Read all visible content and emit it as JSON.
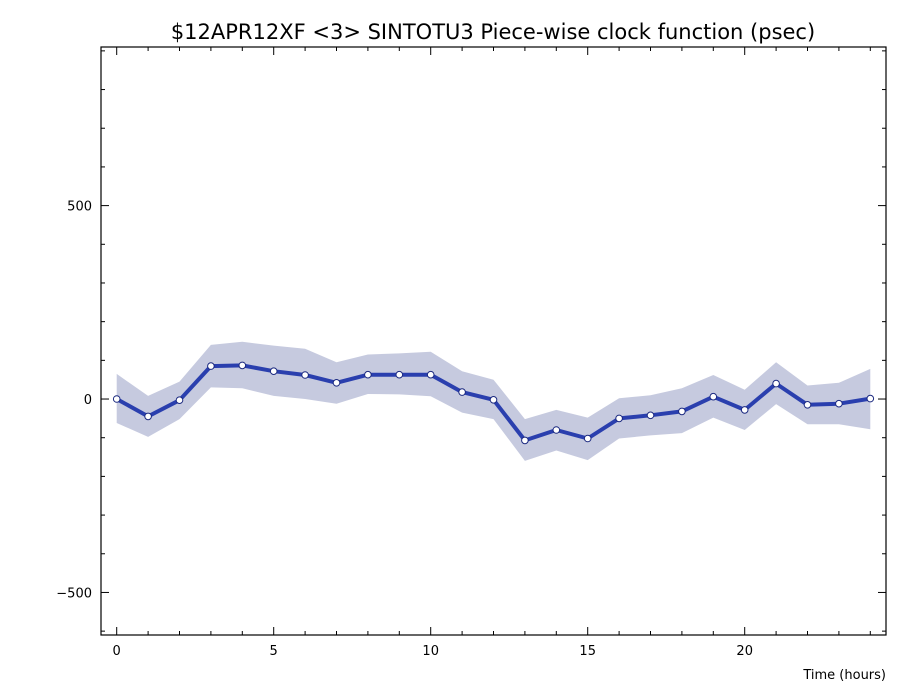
{
  "chart_data": {
    "type": "line",
    "title": "$12APR12XF <3>  SINTOTU3  Piece-wise clock function (psec)",
    "xlabel": "Time (hours)",
    "ylabel": "",
    "xlim": [
      -0.5,
      24.5
    ],
    "ylim": [
      -610,
      910
    ],
    "x_ticks": [
      0,
      5,
      10,
      15,
      20
    ],
    "y_ticks": [
      -500,
      0,
      500
    ],
    "x_tick_labels": [
      "0",
      "5",
      "10",
      "15",
      "20"
    ],
    "y_tick_labels": [
      "−500",
      "0",
      "500"
    ],
    "grid": false,
    "series": [
      {
        "x": [
          0,
          1,
          2,
          3,
          4,
          5,
          6,
          7,
          8,
          9,
          10,
          11,
          12,
          13,
          14,
          15,
          16,
          17,
          18,
          19,
          20,
          21,
          22,
          23,
          24
        ],
        "values": [
          0,
          -45,
          -3,
          85,
          87,
          72,
          62,
          42,
          63,
          63,
          63,
          18,
          -2,
          -107,
          -80,
          -102,
          -50,
          -42,
          -32,
          6,
          -28,
          40,
          -15,
          -12,
          1
        ],
        "band_upper": [
          65,
          8,
          45,
          140,
          148,
          138,
          130,
          95,
          115,
          118,
          122,
          72,
          50,
          -52,
          -28,
          -48,
          2,
          10,
          28,
          62,
          24,
          95,
          35,
          42,
          78
        ],
        "band_lower": [
          -62,
          -98,
          -52,
          30,
          28,
          8,
          0,
          -12,
          13,
          12,
          7,
          -35,
          -52,
          -160,
          -133,
          -158,
          -102,
          -94,
          -88,
          -48,
          -80,
          -13,
          -65,
          -65,
          -78
        ]
      }
    ],
    "colors": {
      "line": "#2a3fae",
      "band": "#c6cadf",
      "marker_fill": "#ffffff",
      "frame": "#000000"
    }
  }
}
